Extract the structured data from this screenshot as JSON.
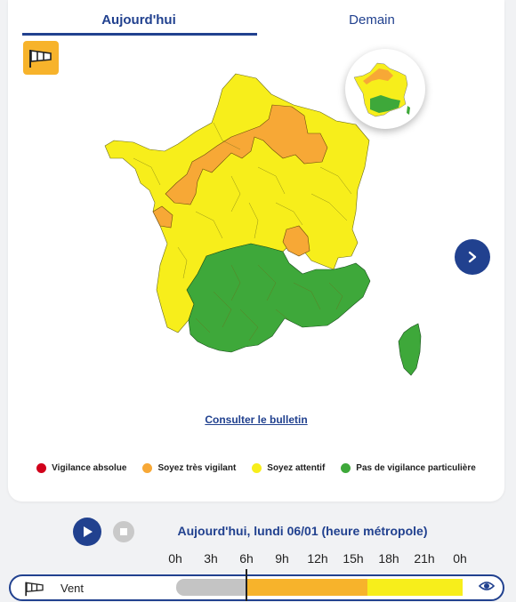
{
  "tabs": {
    "today": "Aujourd'hui",
    "tomorrow": "Demain"
  },
  "bulletin_link": "Consulter le bulletin",
  "legend": [
    {
      "label": "Vigilance absolue",
      "color": "#d1011b"
    },
    {
      "label": "Soyez très vigilant",
      "color": "#f7a836"
    },
    {
      "label": "Soyez attentif",
      "color": "#f7ee1b"
    },
    {
      "label": "Pas de vigilance particulière",
      "color": "#3ea83a"
    }
  ],
  "date_label": "Aujourd'hui, lundi 06/01 (heure métropole)",
  "hours": [
    "0h",
    "3h",
    "6h",
    "9h",
    "12h",
    "15h",
    "18h",
    "21h",
    "0h"
  ],
  "timeline": {
    "label": "Vent",
    "segments": [
      {
        "level": "past",
        "color": "#c4c4c4"
      },
      {
        "level": "orange",
        "color": "#f7b32b"
      },
      {
        "level": "yellow",
        "color": "#f7ee1b"
      }
    ]
  },
  "colors": {
    "accent": "#21418f",
    "green": "#3ea83a",
    "yellow": "#f7ee1b",
    "orange": "#f7a836"
  },
  "icons": {
    "phenomenon": "windsock-icon",
    "next": "chevron-right-icon",
    "play": "play-icon",
    "stop": "stop-icon",
    "view": "eye-icon"
  }
}
